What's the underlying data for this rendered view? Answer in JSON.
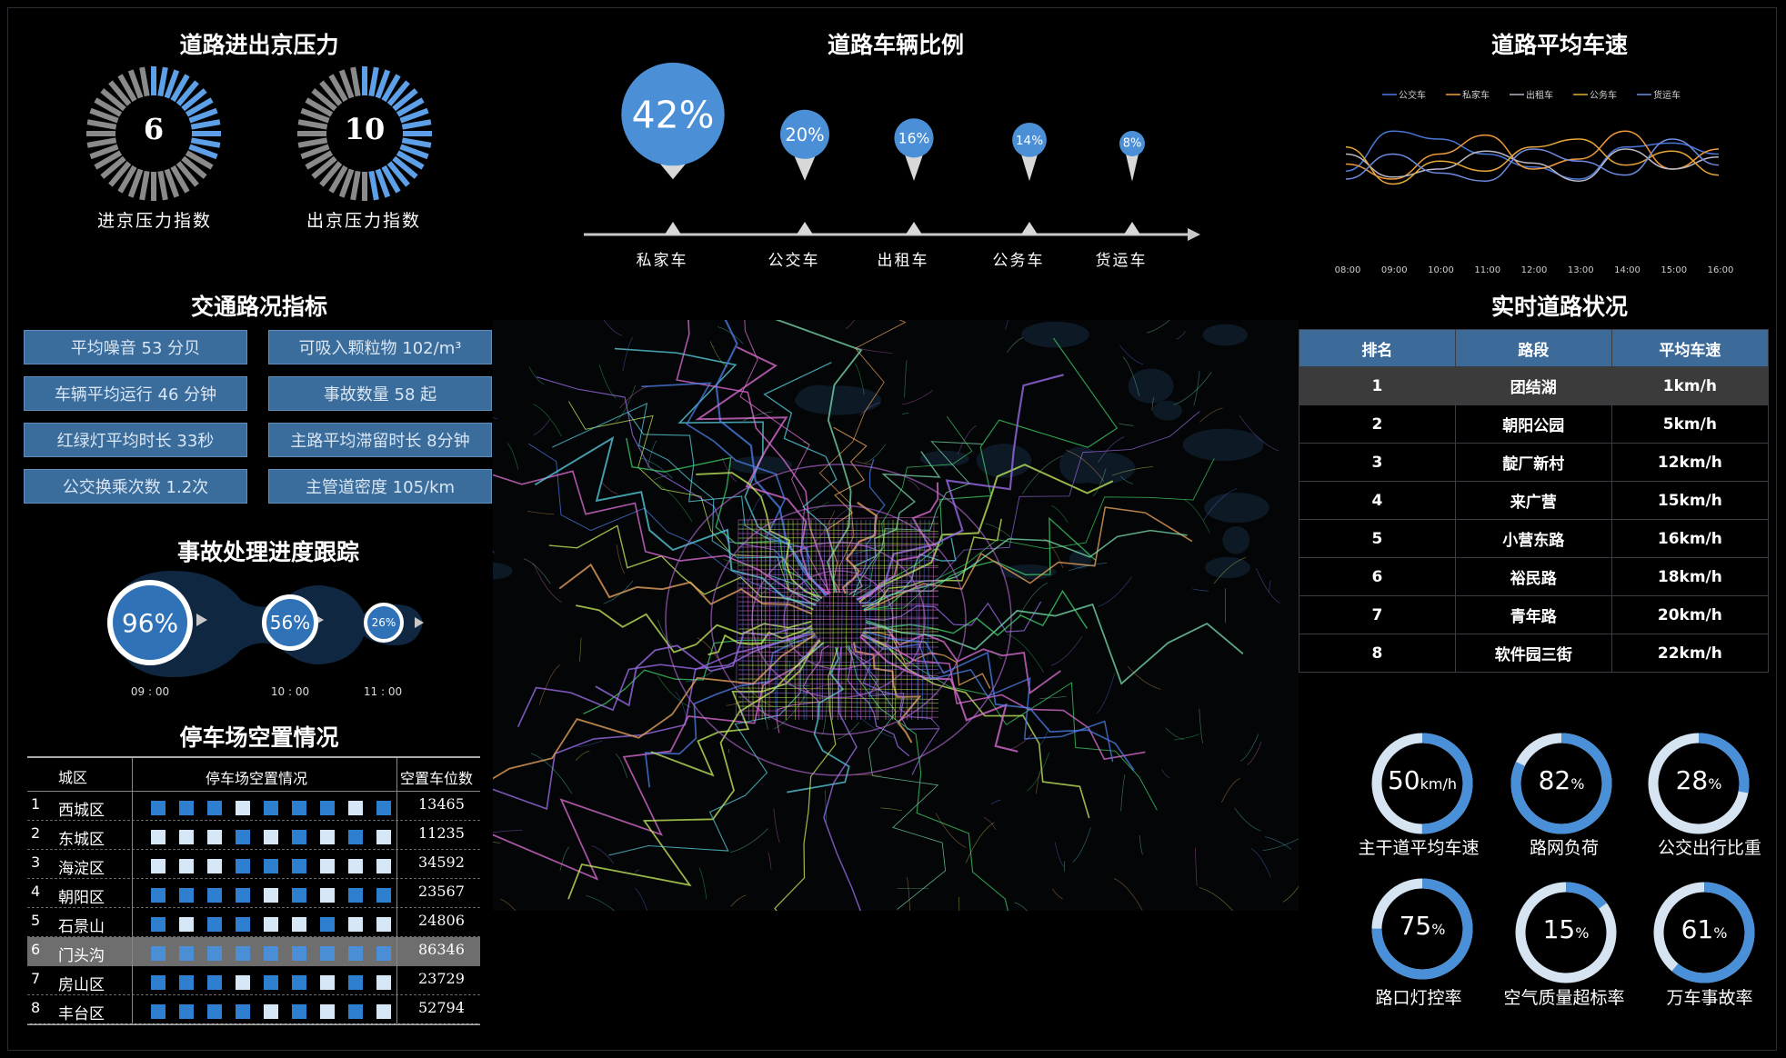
{
  "pressure": {
    "title": "道路进出京压力",
    "in_value": "6",
    "in_label": "进京压力指数",
    "in_level": 0.32,
    "out_value": "10",
    "out_label": "出京压力指数",
    "out_level": 0.5
  },
  "vehicle_ratio": {
    "title": "道路车辆比例",
    "items": [
      {
        "label": "私家车",
        "pct": "42%",
        "value": 42
      },
      {
        "label": "公交车",
        "pct": "20%",
        "value": 20
      },
      {
        "label": "出租车",
        "pct": "16%",
        "value": 16
      },
      {
        "label": "公务车",
        "pct": "14%",
        "value": 14
      },
      {
        "label": "货运车",
        "pct": "8%",
        "value": 8
      }
    ]
  },
  "avg_speed": {
    "title": "道路平均车速",
    "legend": [
      "公交车",
      "私家车",
      "出租车",
      "公务车",
      "货运车"
    ],
    "x": [
      "08:00",
      "09:00",
      "10:00",
      "11:00",
      "12:00",
      "13:00",
      "14:00",
      "15:00",
      "16:00"
    ]
  },
  "chart_data": {
    "type": "line",
    "title": "道路平均车速",
    "x": [
      "08:00",
      "09:00",
      "10:00",
      "11:00",
      "12:00",
      "13:00",
      "14:00",
      "15:00",
      "16:00"
    ],
    "series": [
      {
        "name": "公交车",
        "color": "#4a78d8",
        "values": [
          38,
          78,
          70,
          55,
          42,
          30,
          62,
          66,
          55
        ]
      },
      {
        "name": "私家车",
        "color": "#f29a3a",
        "values": [
          45,
          30,
          55,
          74,
          40,
          50,
          78,
          40,
          60
        ]
      },
      {
        "name": "出租车",
        "color": "#b9b9c8",
        "values": [
          55,
          32,
          40,
          58,
          46,
          28,
          60,
          40,
          52
        ]
      },
      {
        "name": "公务车",
        "color": "#e8a838",
        "values": [
          62,
          25,
          48,
          38,
          62,
          70,
          44,
          58,
          34
        ]
      },
      {
        "name": "货运车",
        "color": "#6f8be0",
        "values": [
          30,
          55,
          36,
          28,
          60,
          48,
          34,
          70,
          44
        ]
      }
    ],
    "ylim": [
      0,
      100
    ],
    "grid": false,
    "legend": "top"
  },
  "traffic": {
    "title": "交通路况指标",
    "items": [
      "平均噪音   53 分贝",
      "可吸入颗粒物   102/m³",
      "车辆平均运行   46 分钟",
      "事故数量   58 起",
      "红绿灯平均时长  33秒",
      "主路平均滞留时长  8分钟",
      "公交换乘次数  1.2次",
      "主管道密度  105/km"
    ]
  },
  "accident": {
    "title": "事故处理进度跟踪",
    "steps": [
      {
        "pct": "96%",
        "time": "09 : 00"
      },
      {
        "pct": "56%",
        "time": "10 : 00"
      },
      {
        "pct": "26%",
        "time": "11 : 00"
      }
    ]
  },
  "parking": {
    "title": "停车场空置情况",
    "headers": [
      "城区",
      "停车场空置情况",
      "空置车位数"
    ],
    "rows": [
      {
        "num": "1",
        "name": "西城区",
        "value": "13465",
        "cells": "DDDLDDDLD"
      },
      {
        "num": "2",
        "name": "东城区",
        "value": "11235",
        "cells": "LLLDLDLDL"
      },
      {
        "num": "3",
        "name": "海淀区",
        "value": "34592",
        "cells": "LLLDDDLLL"
      },
      {
        "num": "4",
        "name": "朝阳区",
        "value": "23567",
        "cells": "DDDDLDLDD"
      },
      {
        "num": "5",
        "name": "石景山",
        "value": "24806",
        "cells": "DLDDLLDLL"
      },
      {
        "num": "6",
        "name": "门头沟",
        "value": "86346",
        "cells": "DDDDDDDDD"
      },
      {
        "num": "7",
        "name": "房山区",
        "value": "23729",
        "cells": "DDDLDDLDL"
      },
      {
        "num": "8",
        "name": "丰台区",
        "value": "52794",
        "cells": "DDDDLDLDL"
      }
    ]
  },
  "roads": {
    "title": "实时道路状况",
    "headers": [
      "排名",
      "路段",
      "平均车速"
    ],
    "rows": [
      [
        "1",
        "团结湖",
        "1km/h"
      ],
      [
        "2",
        "朝阳公园",
        "5km/h"
      ],
      [
        "3",
        "靛厂新村",
        "12km/h"
      ],
      [
        "4",
        "来广营",
        "15km/h"
      ],
      [
        "5",
        "小营东路",
        "16km/h"
      ],
      [
        "6",
        "裕民路",
        "18km/h"
      ],
      [
        "7",
        "青年路",
        "20km/h"
      ],
      [
        "8",
        "软件园三街",
        "22km/h"
      ]
    ]
  },
  "gauges": [
    {
      "num": "50",
      "unit": "km/h",
      "label": "主干道平均车速",
      "level": 0.5
    },
    {
      "num": "82",
      "unit": "%",
      "label": "路网负荷",
      "level": 0.82
    },
    {
      "num": "28",
      "unit": "%",
      "label": "公交出行比重",
      "level": 0.28
    },
    {
      "num": "75",
      "unit": "%",
      "label": "路口灯控率",
      "level": 0.75
    },
    {
      "num": "15",
      "unit": "%",
      "label": "空气质量超标率",
      "level": 0.15
    },
    {
      "num": "61",
      "unit": "%",
      "label": "万车事故率",
      "level": 0.61
    }
  ],
  "colors": {
    "accent": "#4a90d9",
    "light": "#d6e4f2",
    "gray": "#8a8a8a",
    "panel": "#3a6c9c"
  }
}
